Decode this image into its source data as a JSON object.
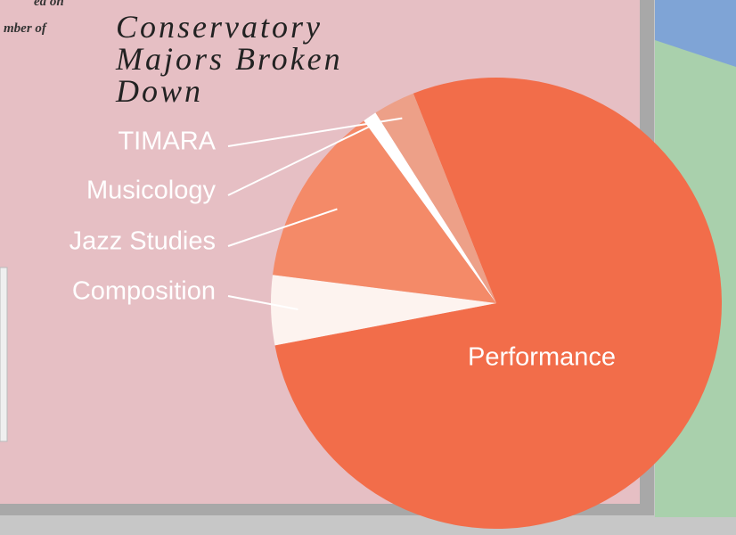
{
  "chart_data": {
    "type": "pie",
    "title": "Conservatory Majors Broken Down",
    "background_text": [
      "ed on",
      "mber of"
    ],
    "categories": [
      "Performance",
      "Composition",
      "Jazz Studies",
      "Musicology",
      "TIMARA"
    ],
    "values": [
      78,
      5,
      13,
      1,
      3
    ],
    "colors": [
      "#f26d4a",
      "#fdf3ef",
      "#f48a68",
      "#ffffff",
      "#eda088"
    ]
  }
}
